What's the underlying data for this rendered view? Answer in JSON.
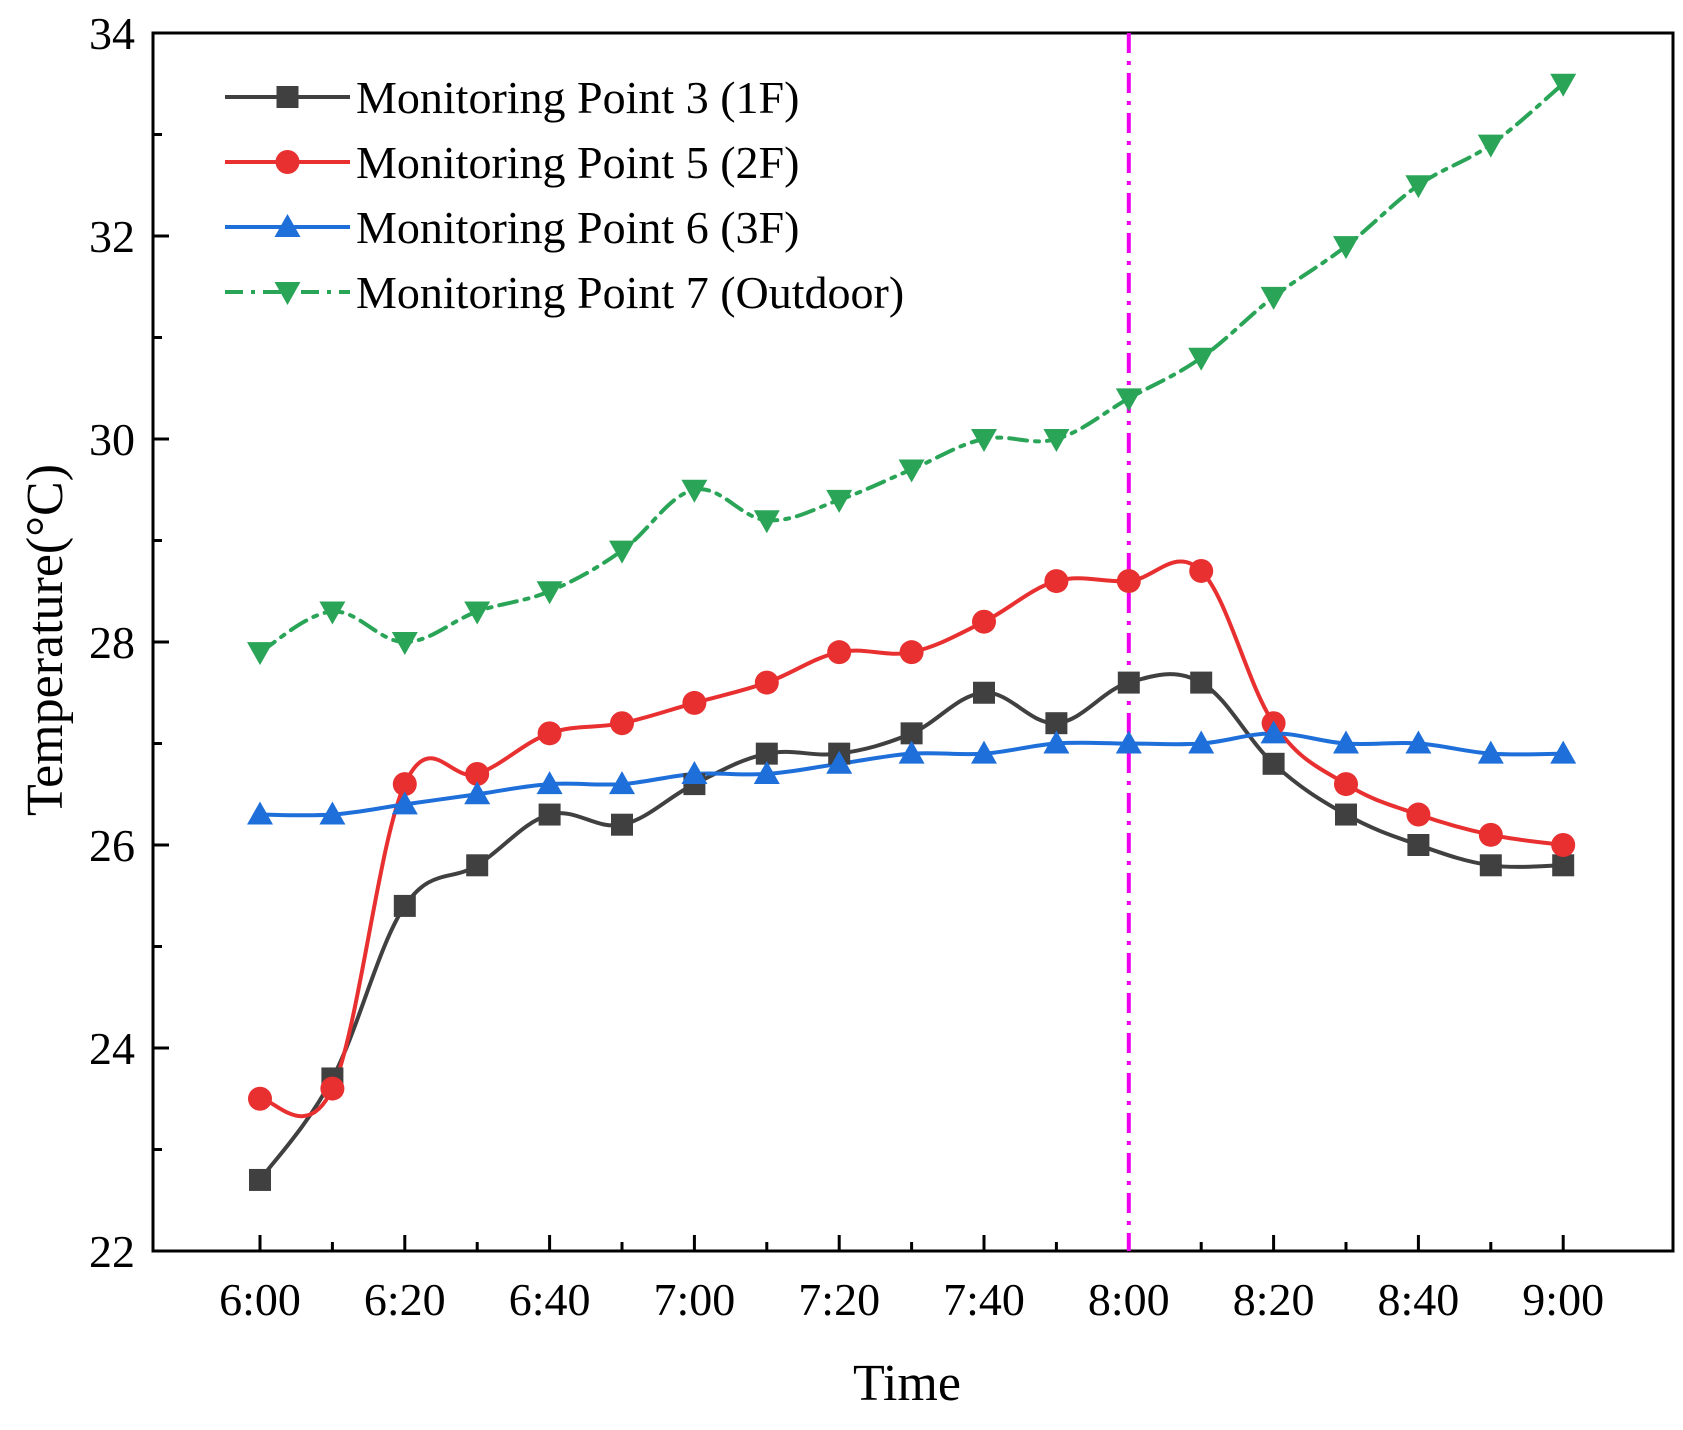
{
  "chart_data": {
    "type": "line",
    "xlabel": "Time",
    "ylabel": "Temperature(°C)",
    "ylim": [
      22,
      34
    ],
    "yticks": [
      "22",
      "24",
      "26",
      "28",
      "30",
      "32",
      "34"
    ],
    "x": [
      "6:00",
      "6:10",
      "6:20",
      "6:30",
      "6:40",
      "6:50",
      "7:00",
      "7:10",
      "7:20",
      "7:30",
      "7:40",
      "7:50",
      "8:00",
      "8:10",
      "8:20",
      "8:30",
      "8:40",
      "8:50",
      "9:00"
    ],
    "xticks": [
      "6:00",
      "6:20",
      "6:40",
      "7:00",
      "7:20",
      "7:40",
      "8:00",
      "8:20",
      "8:40",
      "9:00"
    ],
    "reference_line": {
      "x": "8:00",
      "color": "#ee00ee",
      "style": "dash-dot"
    },
    "legend_position": "top-left",
    "series": [
      {
        "name": "Monitoring Point 3 (1F)",
        "color": "#404040",
        "marker": "square",
        "line_style": "solid",
        "values": [
          22.7,
          23.7,
          25.4,
          25.8,
          26.3,
          26.2,
          26.6,
          26.9,
          26.9,
          27.1,
          27.5,
          27.2,
          27.6,
          27.6,
          26.8,
          26.3,
          26.0,
          25.8,
          25.8
        ]
      },
      {
        "name": "Monitoring Point 5 (2F)",
        "color": "#e83030",
        "marker": "circle",
        "line_style": "solid",
        "values": [
          23.5,
          23.6,
          26.6,
          26.7,
          27.1,
          27.2,
          27.4,
          27.6,
          27.9,
          27.9,
          28.2,
          28.6,
          28.6,
          28.7,
          27.2,
          26.6,
          26.3,
          26.1,
          26.0
        ]
      },
      {
        "name": "Monitoring Point 6 (3F)",
        "color": "#1e6fd9",
        "marker": "triangle-up",
        "line_style": "solid",
        "values": [
          26.3,
          26.3,
          26.4,
          26.5,
          26.6,
          26.6,
          26.7,
          26.7,
          26.8,
          26.9,
          26.9,
          27.0,
          27.0,
          27.0,
          27.1,
          27.0,
          27.0,
          26.9,
          26.9
        ]
      },
      {
        "name": "Monitoring Point 7 (Outdoor)",
        "color": "#2aa558",
        "marker": "triangle-down",
        "line_style": "dash-dot",
        "values": [
          27.9,
          28.3,
          28.0,
          28.3,
          28.5,
          28.9,
          29.5,
          29.2,
          29.4,
          29.7,
          30.0,
          30.0,
          30.4,
          30.8,
          31.4,
          31.9,
          32.5,
          32.9,
          33.5
        ]
      }
    ]
  }
}
